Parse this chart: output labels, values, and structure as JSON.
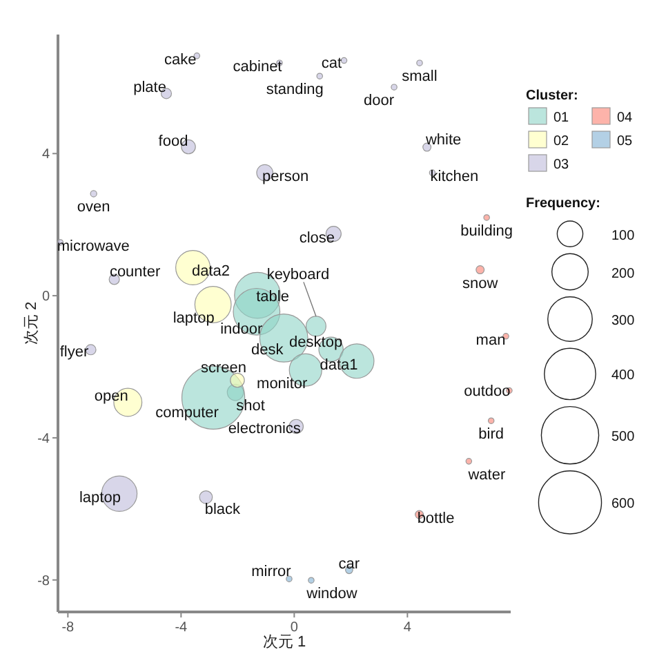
{
  "chart_data": {
    "type": "bubble",
    "xlabel": "次元 1",
    "ylabel": "次元 2",
    "legend_title": "Cluster:",
    "legend": "right",
    "grid": false,
    "xlim": [
      -8.35,
      7.65
    ],
    "ylim": [
      -8.9,
      7.35
    ],
    "xticks": [
      -8,
      -4,
      0,
      4
    ],
    "yticks": [
      -8,
      -4,
      0,
      4
    ],
    "size_legend": [
      100,
      200,
      300,
      400,
      500,
      600
    ],
    "annotations": [
      "Frequency:"
    ],
    "series": [
      {
        "name": "01",
        "color": "#8dd3c7",
        "x": [
          -1.3,
          -1.33,
          0.77,
          -0.37,
          1.3,
          2.21,
          0.4,
          -2.08,
          -2.86
        ],
        "values": [
          0.01,
          -0.45,
          -0.86,
          -1.19,
          -1.51,
          -1.84,
          -2.09,
          -2.72,
          -2.87
        ],
        "sizes": [
          320,
          330,
          60,
          350,
          90,
          180,
          160,
          40,
          600
        ],
        "value_labels": [
          "table",
          "indoor",
          "keyboard",
          "desk",
          "desktop",
          "data1",
          "monitor",
          "shot",
          "computer"
        ]
      },
      {
        "name": "02",
        "color": "#ffffb3",
        "x": [
          -3.58,
          -2.87,
          -2.01,
          -5.88
        ],
        "values": [
          0.79,
          -0.25,
          -2.38,
          -3.0
        ],
        "sizes": [
          180,
          200,
          30,
          120
        ],
        "value_labels": [
          "data2",
          "laptop",
          "screen",
          "open"
        ]
      },
      {
        "name": "03",
        "color": "#bebada",
        "x": [
          -3.44,
          -0.52,
          1.76,
          4.43,
          0.9,
          3.53,
          -4.52,
          -3.74,
          -1.04,
          4.69,
          4.88,
          -7.09,
          1.39,
          -8.27,
          -6.36,
          -7.19,
          0.07,
          -6.18,
          -3.12
        ],
        "values": [
          6.75,
          6.55,
          6.62,
          6.55,
          6.18,
          5.87,
          5.69,
          4.19,
          3.46,
          4.18,
          3.46,
          2.87,
          1.74,
          1.5,
          0.46,
          -1.52,
          -3.68,
          -5.57,
          -5.67
        ],
        "sizes": [
          5,
          5,
          5,
          5,
          5,
          5,
          16,
          30,
          40,
          10,
          5,
          6,
          35,
          5,
          16,
          16,
          30,
          190,
          25
        ],
        "value_labels": [
          "cake",
          "cabinet",
          "cat",
          "small",
          "standing",
          "door",
          "plate",
          "food",
          "person",
          "white",
          "kitchen",
          "oven",
          "close",
          "microwave",
          "counter",
          "flyer",
          "electronics",
          "laptop",
          "black"
        ]
      },
      {
        "name": "04",
        "color": "#fb8072",
        "x": [
          6.8,
          6.57,
          7.48,
          7.6,
          6.96,
          6.17,
          4.42
        ],
        "values": [
          2.2,
          0.73,
          -1.14,
          -2.67,
          -3.52,
          -4.66,
          -6.16
        ],
        "sizes": [
          5,
          10,
          5,
          5,
          5,
          5,
          10
        ],
        "value_labels": [
          "building",
          "snow",
          "man",
          "outdoo",
          "bird",
          "water",
          "bottle"
        ]
      },
      {
        "name": "05",
        "color": "#80b1d3",
        "x": [
          1.94,
          -0.18,
          0.6
        ],
        "values": [
          -7.72,
          -7.97,
          -8.01
        ],
        "sizes": [
          8,
          5,
          5
        ],
        "value_labels": [
          "car",
          "mirror",
          "window"
        ]
      }
    ]
  }
}
